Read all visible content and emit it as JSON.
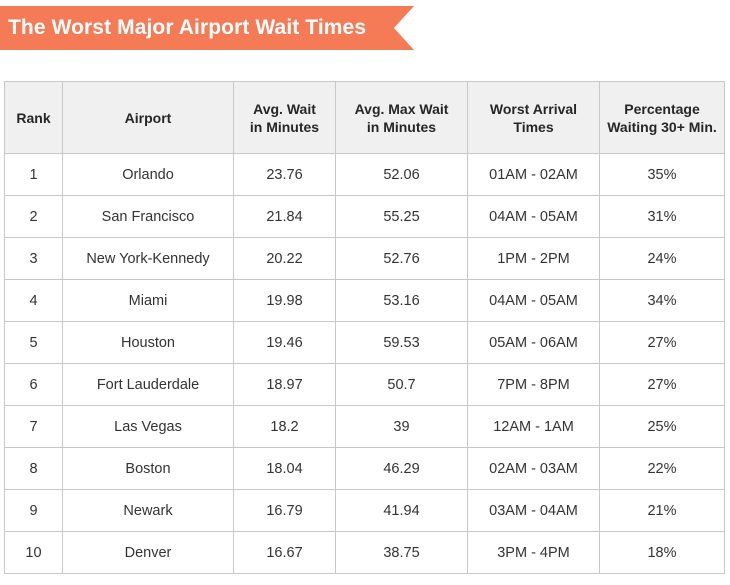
{
  "banner": {
    "title": "The Worst Major Airport Wait Times",
    "color": "#f47b56"
  },
  "table": {
    "headers": [
      [
        "Rank"
      ],
      [
        "Airport"
      ],
      [
        "Avg. Wait",
        "in Minutes"
      ],
      [
        "Avg. Max Wait",
        "in Minutes"
      ],
      [
        "Worst Arrival",
        "Times"
      ],
      [
        "Percentage",
        "Waiting 30+ Min."
      ]
    ],
    "rows": [
      [
        "1",
        "Orlando",
        "23.76",
        "52.06",
        "01AM - 02AM",
        "35%"
      ],
      [
        "2",
        "San Francisco",
        "21.84",
        "55.25",
        "04AM - 05AM",
        "31%"
      ],
      [
        "3",
        "New York-Kennedy",
        "20.22",
        "52.76",
        "1PM - 2PM",
        "24%"
      ],
      [
        "4",
        "Miami",
        "19.98",
        "53.16",
        "04AM - 05AM",
        "34%"
      ],
      [
        "5",
        "Houston",
        "19.46",
        "59.53",
        "05AM - 06AM",
        "27%"
      ],
      [
        "6",
        "Fort Lauderdale",
        "18.97",
        "50.7",
        "7PM - 8PM",
        "27%"
      ],
      [
        "7",
        "Las Vegas",
        "18.2",
        "39",
        "12AM - 1AM",
        "25%"
      ],
      [
        "8",
        "Boston",
        "18.04",
        "46.29",
        "02AM - 03AM",
        "22%"
      ],
      [
        "9",
        "Newark",
        "16.79",
        "41.94",
        "03AM - 04AM",
        "21%"
      ],
      [
        "10",
        "Denver",
        "16.67",
        "38.75",
        "3PM - 4PM",
        "18%"
      ]
    ]
  }
}
